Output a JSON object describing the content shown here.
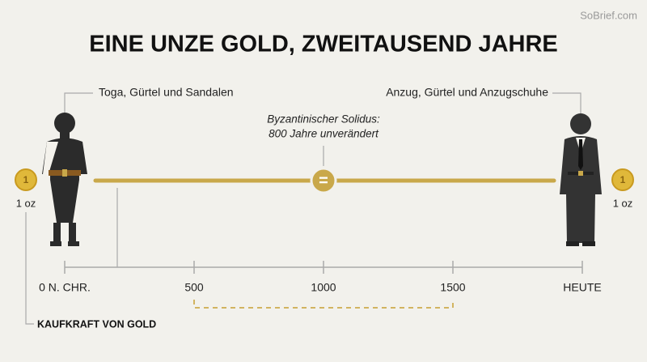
{
  "watermark": "SoBrief.com",
  "title": "EINE UNZE GOLD, ZWEITAUSEND JAHRE",
  "left": {
    "label": "Toga, Gürtel und Sandalen",
    "coin": "1",
    "amount": "1 oz"
  },
  "right": {
    "label": "Anzug, Gürtel und Anzugschuhe",
    "coin": "1",
    "amount": "1 oz"
  },
  "annotation": {
    "line1": "Byzantinischer Solidus:",
    "line2": "800 Jahre unverändert",
    "symbol": "="
  },
  "timeline": [
    "0 N. CHR.",
    "500",
    "1000",
    "1500",
    "HEUTE"
  ],
  "footer": "KAUFKRAFT VON GOLD"
}
